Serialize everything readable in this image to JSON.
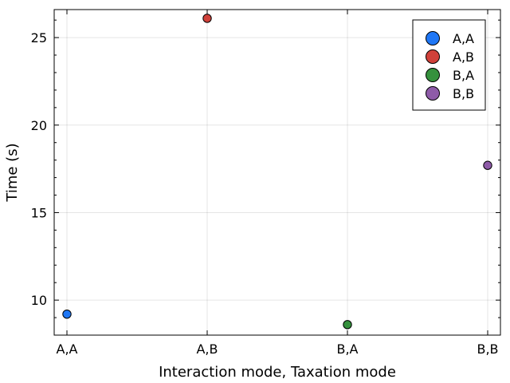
{
  "chart_data": {
    "type": "scatter",
    "xlabel": "Interaction mode, Taxation mode",
    "ylabel": "Time (s)",
    "categories": [
      "A,A",
      "A,B",
      "B,A",
      "B,B"
    ],
    "ylim": [
      8.0,
      26.6
    ],
    "yticks": [
      10,
      15,
      20,
      25
    ],
    "grid": true,
    "legend_position": "top-right",
    "series": [
      {
        "name": "A,A",
        "x": "A,A",
        "y": 9.2,
        "color": "#1f77f5"
      },
      {
        "name": "A,B",
        "x": "A,B",
        "y": 26.1,
        "color": "#d0413a"
      },
      {
        "name": "B,A",
        "x": "B,A",
        "y": 8.6,
        "color": "#35913d"
      },
      {
        "name": "B,B",
        "x": "B,B",
        "y": 17.7,
        "color": "#8e5ba8"
      }
    ]
  }
}
